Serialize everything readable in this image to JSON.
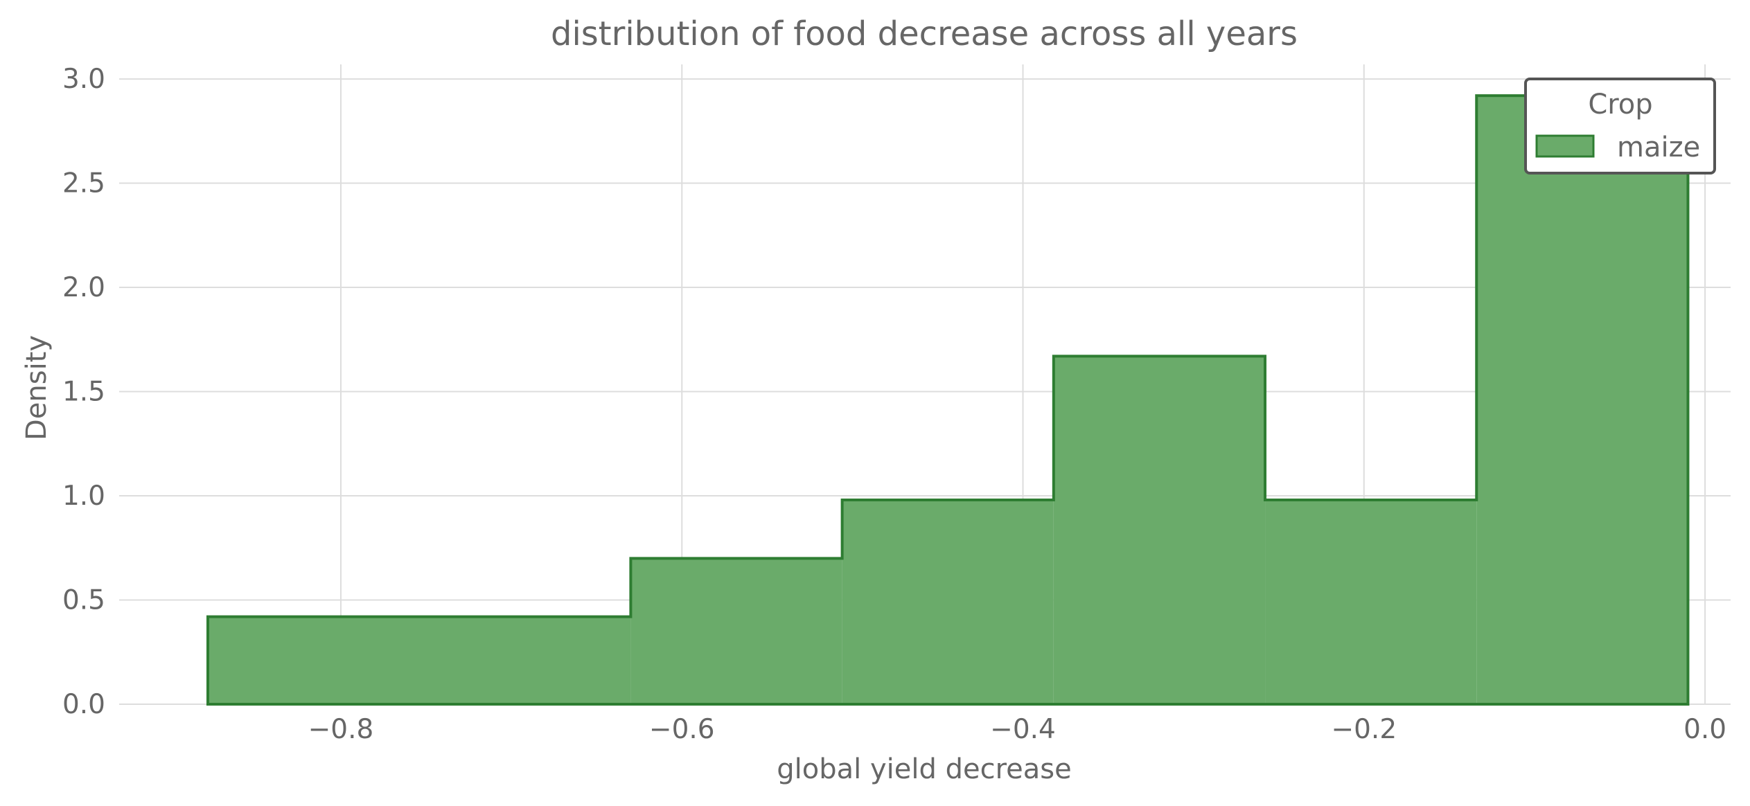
{
  "chart_data": {
    "type": "bar",
    "subtype": "histogram",
    "title": "distribution of food decrease across all years",
    "xlabel": "global yield decrease",
    "ylabel": "Density",
    "xlim": [
      -0.93,
      0.015
    ],
    "ylim": [
      0,
      3.07
    ],
    "x_ticks": [
      -0.8,
      -0.6,
      -0.4,
      -0.2,
      0.0
    ],
    "x_tick_labels": [
      "−0.8",
      "−0.6",
      "−0.4",
      "−0.2",
      "0.0"
    ],
    "y_ticks": [
      0.0,
      0.5,
      1.0,
      1.5,
      2.0,
      2.5,
      3.0
    ],
    "y_tick_labels": [
      "0.0",
      "0.5",
      "1.0",
      "1.5",
      "2.0",
      "2.5",
      "3.0"
    ],
    "grid": true,
    "legend": {
      "title": "Crop",
      "placement": "top-right"
    },
    "series": [
      {
        "name": "maize",
        "color": "#6aab6a",
        "edge_color": "#2e7d32",
        "bin_edges": [
          -0.878,
          -0.63,
          -0.506,
          -0.382,
          -0.258,
          -0.134,
          -0.01
        ],
        "values": [
          0.42,
          0.7,
          0.98,
          1.67,
          0.98,
          2.92
        ]
      }
    ]
  }
}
